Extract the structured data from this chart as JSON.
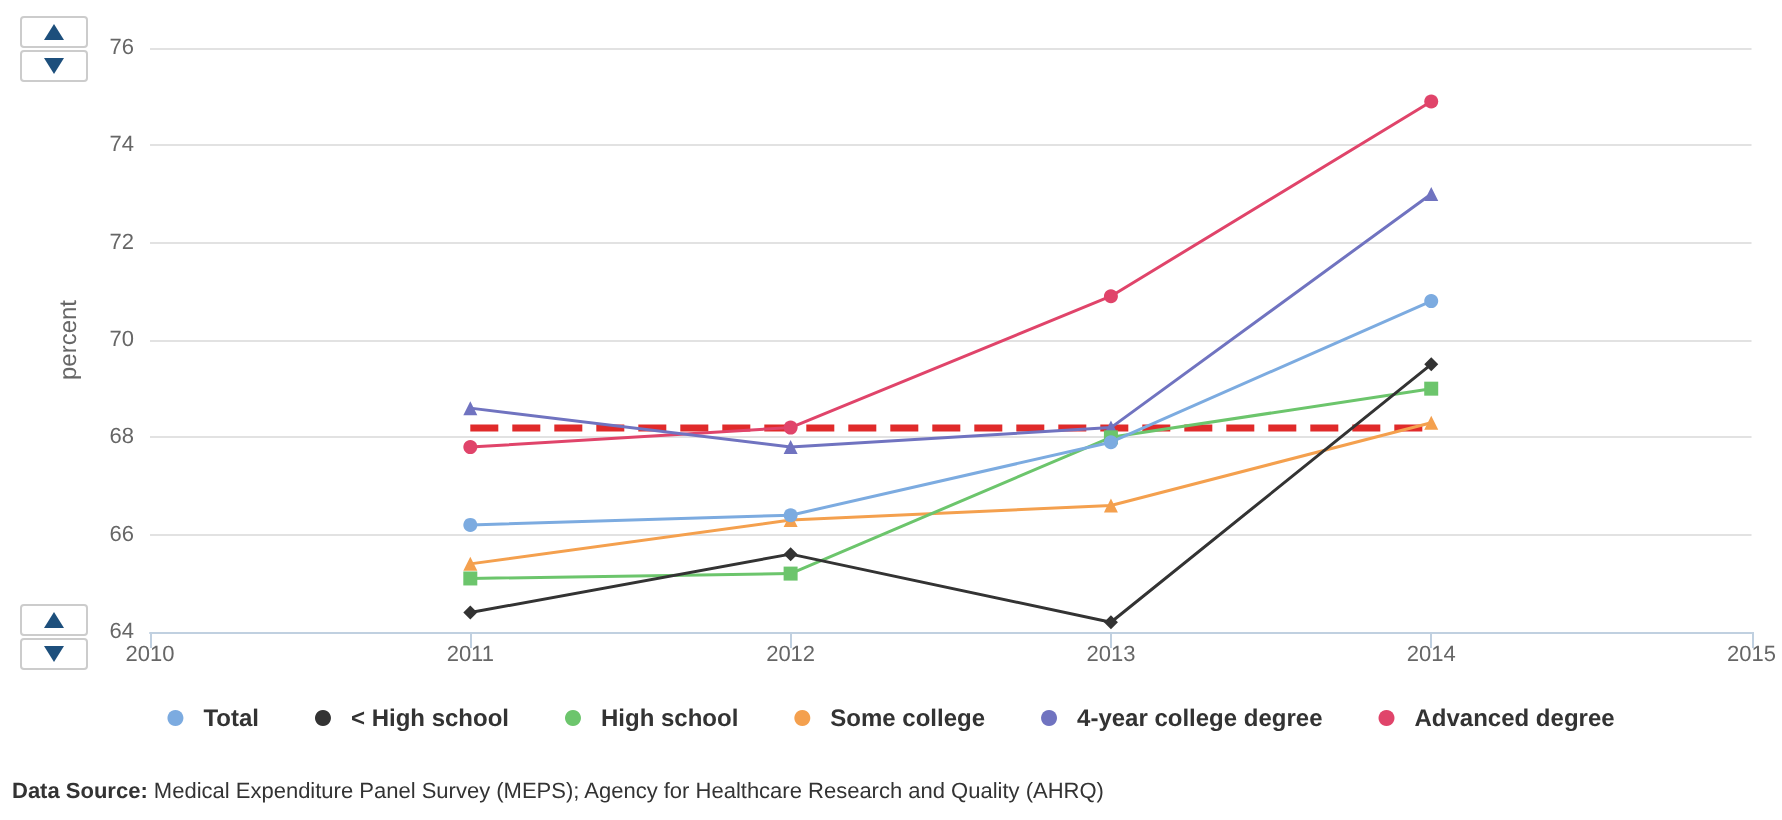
{
  "chart_data": {
    "type": "line",
    "ylabel": "percent",
    "x": [
      2011,
      2012,
      2013,
      2014
    ],
    "xlim": [
      2010,
      2015
    ],
    "xticks": [
      2010,
      2011,
      2012,
      2013,
      2014,
      2015
    ],
    "ylim": [
      64,
      76
    ],
    "yticks": [
      64,
      66,
      68,
      70,
      72,
      74,
      76
    ],
    "grid": "y",
    "legend": "bottom",
    "line_style": "solid",
    "series": [
      {
        "name": "Total",
        "color": "#7cabe0",
        "marker": "circle",
        "values": [
          66.2,
          66.4,
          67.9,
          70.8
        ]
      },
      {
        "name": "< High school",
        "color": "#333333",
        "marker": "diamond",
        "values": [
          64.4,
          65.6,
          64.2,
          69.5
        ]
      },
      {
        "name": "High school",
        "color": "#6cc56c",
        "marker": "square",
        "values": [
          65.1,
          65.2,
          68.0,
          69.0
        ]
      },
      {
        "name": "Some college",
        "color": "#f4a04e",
        "marker": "triangle",
        "values": [
          65.4,
          66.3,
          66.6,
          68.3
        ]
      },
      {
        "name": "4-year college degree",
        "color": "#7073c0",
        "marker": "triangle",
        "values": [
          68.6,
          67.8,
          68.2,
          73.0
        ]
      },
      {
        "name": "Advanced degree",
        "color": "#e0446a",
        "marker": "circle",
        "values": [
          67.8,
          68.2,
          70.9,
          74.9
        ]
      }
    ],
    "ref_lines": [
      {
        "axis": "y",
        "value": 68.2,
        "color": "#e02a2a",
        "line_style": "dashed"
      }
    ],
    "annotations": [
      "Data Source: Medical Expenditure Panel Survey (MEPS); Agency for Healthcare Research and Quality (AHRQ)"
    ]
  }
}
